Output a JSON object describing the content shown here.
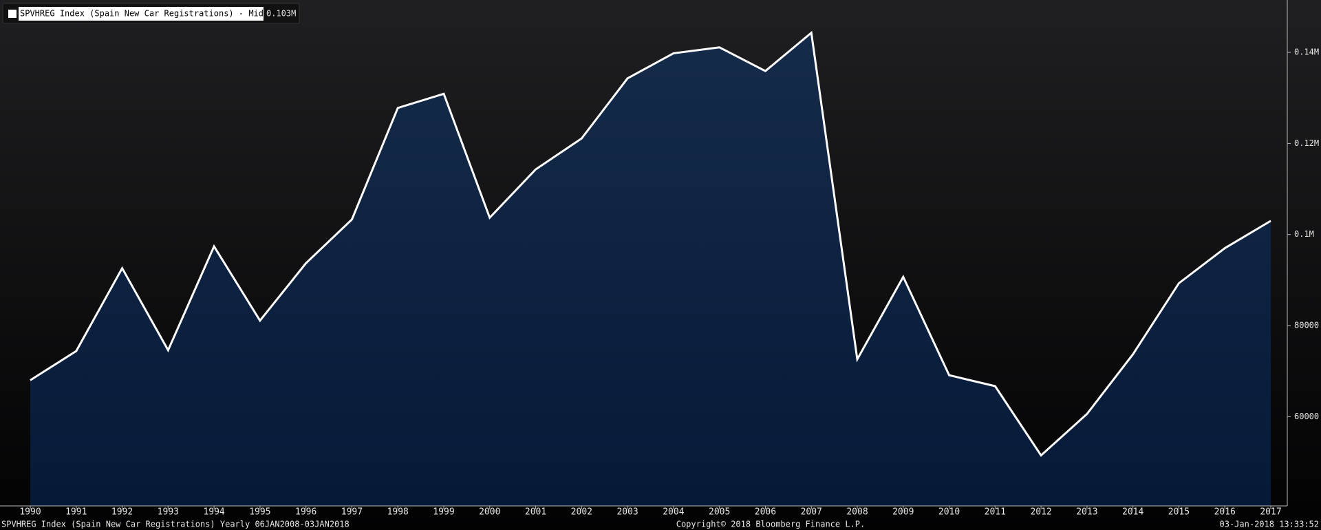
{
  "chart_data": {
    "type": "area",
    "legend_label": "SPVHREG Index (Spain New Car Registrations) - Mid Price",
    "last_price_label": "0.103M",
    "footer_left": "SPVHREG Index (Spain New Car Registrations)  Yearly 06JAN2008-03JAN2018",
    "footer_center": "Copyright© 2018 Bloomberg Finance L.P.",
    "footer_right": "03-Jan-2018 13:33:52",
    "categories": [
      "1990",
      "1991",
      "1992",
      "1993",
      "1994",
      "1995",
      "1996",
      "1997",
      "1998",
      "1999",
      "2000",
      "2001",
      "2002",
      "2003",
      "2004",
      "2005",
      "2006",
      "2007",
      "2008",
      "2009",
      "2010",
      "2011",
      "2012",
      "2013",
      "2014",
      "2015",
      "2016",
      "2017"
    ],
    "series": [
      {
        "name": "SPVHREG Index (Spain New Car Registrations) - Mid Price",
        "color": "#ffffff",
        "values": [
          68000,
          74400,
          92600,
          74600,
          97400,
          81100,
          93700,
          103300,
          127800,
          130900,
          103700,
          114300,
          121100,
          134300,
          139800,
          141100,
          135900,
          144300,
          72600,
          90700,
          69100,
          66700,
          51500,
          60600,
          73700,
          89300,
          97000,
          103000
        ]
      }
    ],
    "ylim": [
      40400,
      151500
    ],
    "yticks": [
      60000,
      80000,
      {
        "value": 100000,
        "label": "0.1M"
      },
      {
        "value": 120000,
        "label": "0.12M"
      },
      {
        "value": 140000,
        "label": "0.14M"
      }
    ],
    "y_axis_side": "right",
    "grid": false
  }
}
